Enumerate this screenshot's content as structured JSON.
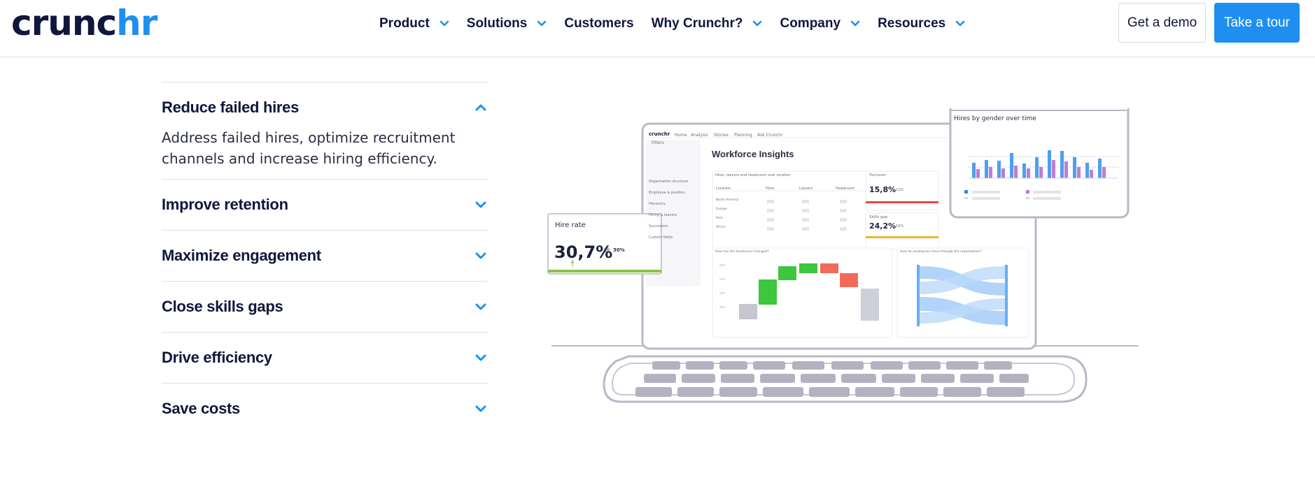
{
  "header": {
    "logo": {
      "part1": "crunc",
      "part2": "hr"
    },
    "nav": [
      {
        "label": "Product",
        "has_dropdown": true
      },
      {
        "label": "Solutions",
        "has_dropdown": true
      },
      {
        "label": "Customers",
        "has_dropdown": false
      },
      {
        "label": "Why Crunchr?",
        "has_dropdown": true
      },
      {
        "label": "Company",
        "has_dropdown": true
      },
      {
        "label": "Resources",
        "has_dropdown": true
      }
    ],
    "demo_label": "Get a demo",
    "tour_label": "Take a tour"
  },
  "accordion": [
    {
      "title": "Reduce failed hires",
      "expanded": true,
      "body": "Address failed hires, optimize recruitment channels and increase hiring efficiency."
    },
    {
      "title": "Improve retention",
      "expanded": false
    },
    {
      "title": "Maximize engagement",
      "expanded": false
    },
    {
      "title": "Close skills gaps",
      "expanded": false
    },
    {
      "title": "Drive efficiency",
      "expanded": false
    },
    {
      "title": "Save costs",
      "expanded": false
    }
  ],
  "illustration": {
    "app_logo": "crunchr",
    "app_nav": [
      "Home",
      "Analysis",
      "Stories",
      "Planning",
      "Ask Crunchr"
    ],
    "filters_label": "Filters",
    "filter_items": [
      "Organization structure",
      "Employee & position",
      "Hierarchy",
      "Hiring & leavers",
      "Succession",
      "Custom fields"
    ],
    "dashboard_title": "Workforce Insights",
    "table_title": "Hires, leavers and headcount over location",
    "table_headers": [
      "Location",
      "Hires",
      "Leavers",
      "Headcount"
    ],
    "table_rows": [
      "North America",
      "Europe",
      "Asia",
      "Africa"
    ],
    "turnover_label": "Turnover",
    "turnover_value": "15,8%",
    "turnover_delta": "12%",
    "skills_label": "Skills gap",
    "skills_value": "24,2%",
    "skills_delta": "16%",
    "waterfall_title": "How has the headcount changed?",
    "sankey_title": "How do employees move through the organization?",
    "hire_rate_label": "Hire rate",
    "hire_rate_value": "30,7%",
    "hire_rate_compare": "30%",
    "popup_title": "Hires by gender over time",
    "colors": {
      "accent": "#1e8ff0",
      "green": "#3ec63e",
      "red": "#f26a5c",
      "yellow": "#f0b429",
      "purple": "#b57ad6",
      "laptop": "#b9b8c6"
    }
  }
}
